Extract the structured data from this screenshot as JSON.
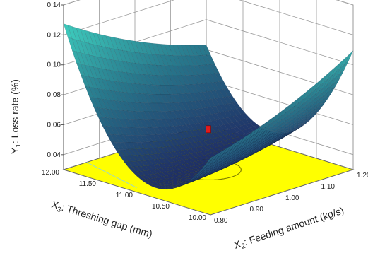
{
  "chart_data": {
    "type": "surface3d",
    "z_axis": {
      "label_prefix": "Y",
      "label_sub": "1",
      "label_rest": ": Loss rate (%)",
      "ticks": [
        "0.04",
        "0.06",
        "0.08",
        "0.10",
        "0.12",
        "0.14"
      ],
      "range": [
        0.03,
        0.14
      ]
    },
    "x2_axis": {
      "label_prefix": "X",
      "label_sub": "2",
      "label_rest": ": Feeding amount (kg/s)",
      "ticks": [
        "0.80",
        "0.90",
        "1.00",
        "1.10",
        "1.20"
      ],
      "range": [
        0.8,
        1.2
      ]
    },
    "x3_axis": {
      "label_prefix": "X",
      "label_sub": "3",
      "label_rest": ": Threshing gap (mm)",
      "ticks": [
        "10.00",
        "10.50",
        "11.00",
        "11.50",
        "12.00"
      ],
      "range": [
        10.0,
        12.0
      ]
    },
    "surface_corner_values": {
      "x2_0.80_x3_12.00": 0.128,
      "x2_0.80_x3_10.00": 0.065,
      "x2_1.20_x3_12.00": 0.085,
      "x2_1.20_x3_10.00": 0.109,
      "minimum_near": {
        "x2": 0.97,
        "x3": 10.9,
        "y": 0.035
      }
    },
    "design_point": {
      "x2": 1.0,
      "x3": 11.0,
      "y": 0.057
    },
    "colors": {
      "floor": "#ffff00",
      "surface_low": "#1f2f66",
      "surface_high": "#3fd2c0",
      "point": "#e21b1b",
      "contour": "#7a7a00",
      "gridlines": "#9a9a9a"
    }
  }
}
